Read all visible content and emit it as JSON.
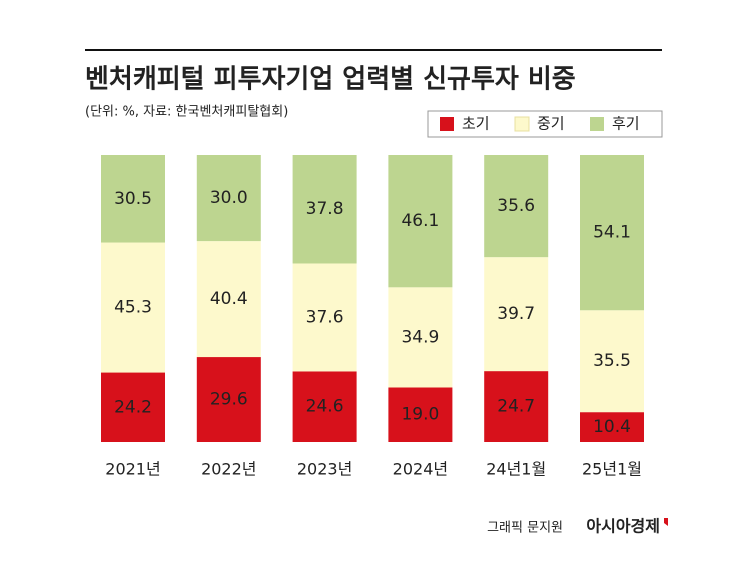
{
  "chart_data": {
    "type": "stacked_bar",
    "title": "벤처캐피털 피투자기업 업력별 신규투자 비중",
    "subtitle": "(단위: %, 자료: 한국벤처캐피탈협회)",
    "categories": [
      "2021년",
      "2022년",
      "2023년",
      "2024년",
      "24년1월",
      "25년1월"
    ],
    "series": [
      {
        "name": "초기",
        "color": "#d7111b",
        "label_color": "#ffffff",
        "values": [
          24.2,
          29.6,
          24.6,
          19.0,
          24.7,
          10.4
        ],
        "value_labels": [
          "24.2",
          "29.6",
          "24.6",
          "19.0",
          "24.7",
          "10.4"
        ]
      },
      {
        "name": "중기",
        "color": "#fdf9cc",
        "label_color": "#c98a2e",
        "values": [
          45.3,
          40.4,
          37.6,
          34.9,
          39.7,
          35.5
        ],
        "value_labels": [
          "45.3",
          "40.4",
          "37.6",
          "34.9",
          "39.7",
          "35.5"
        ]
      },
      {
        "name": "후기",
        "color": "#bdd590",
        "label_color": "#555555",
        "values": [
          30.5,
          30.0,
          37.8,
          46.1,
          35.6,
          54.1
        ],
        "value_labels": [
          "30.5",
          "30.0",
          "37.8",
          "46.1",
          "35.6",
          "54.1"
        ]
      }
    ],
    "credit": "그래픽 문지원",
    "publisher": "아시아경제"
  }
}
